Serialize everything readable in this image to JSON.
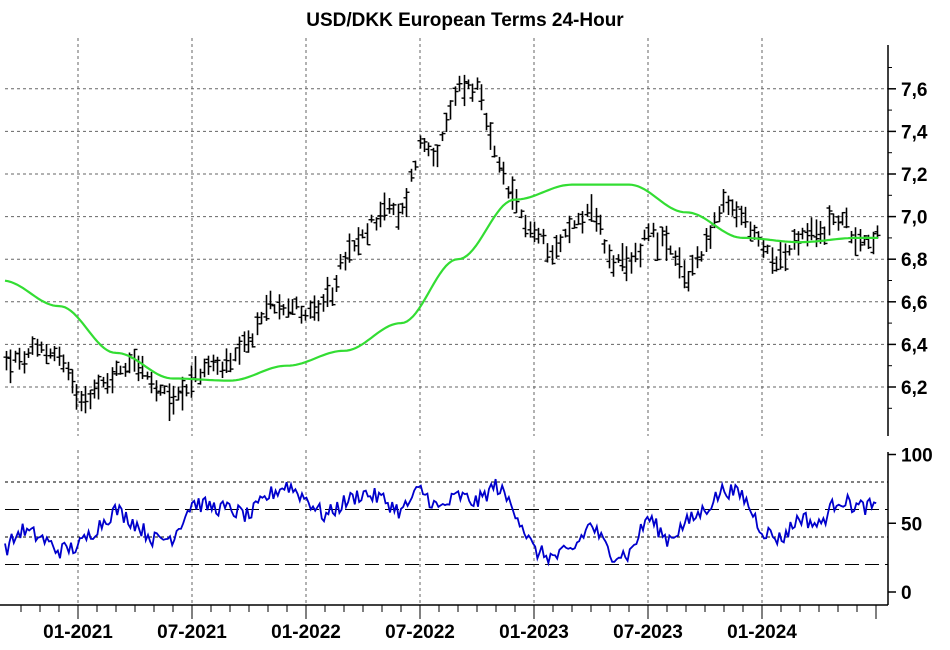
{
  "chart_data": [
    {
      "type": "bar",
      "subtype": "ohlc-bars-with-moving-average",
      "title": "USD/DKK European Terms 24-Hour",
      "ylim": [
        6.0,
        7.8
      ],
      "yticks": [
        "6,2",
        "6,4",
        "6,6",
        "6,8",
        "7,0",
        "7,2",
        "7,4",
        "7,6"
      ],
      "xticks": [
        "01-2021",
        "07-2021",
        "01-2022",
        "07-2022",
        "01-2023",
        "07-2023",
        "01-2024"
      ],
      "grid": true,
      "colors": {
        "price": "#000000",
        "moving_average": "#33dd33"
      },
      "series": [
        {
          "x": [
            "2020-10",
            "2020-11",
            "2020-12",
            "2021-01",
            "2021-02",
            "2021-03",
            "2021-04",
            "2021-05",
            "2021-06",
            "2021-07",
            "2021-08",
            "2021-09",
            "2021-10",
            "2021-11",
            "2021-12",
            "2022-01",
            "2022-02",
            "2022-03",
            "2022-04",
            "2022-05",
            "2022-06",
            "2022-07",
            "2022-08",
            "2022-09",
            "2022-10",
            "2022-11",
            "2022-12",
            "2023-01",
            "2023-02",
            "2023-03",
            "2023-04",
            "2023-05",
            "2023-06",
            "2023-07",
            "2023-08",
            "2023-09",
            "2023-10",
            "2023-11",
            "2023-12",
            "2024-01",
            "2024-02",
            "2024-03",
            "2024-04",
            "2024-05",
            "2024-06"
          ],
          "values": [
            6.32,
            6.38,
            6.35,
            6.16,
            6.18,
            6.27,
            6.34,
            6.18,
            6.14,
            6.24,
            6.3,
            6.3,
            6.4,
            6.59,
            6.6,
            6.55,
            6.57,
            6.8,
            6.9,
            7.05,
            7.0,
            7.35,
            7.3,
            7.62,
            7.6,
            7.25,
            7.05,
            6.92,
            6.85,
            6.95,
            7.05,
            6.8,
            6.75,
            6.95,
            6.85,
            6.7,
            6.88,
            7.05,
            7.0,
            6.85,
            6.8,
            6.9,
            6.92,
            7.0,
            6.9
          ]
        },
        {
          "x": [
            "2020-09",
            "2020-12",
            "2021-03",
            "2021-06",
            "2021-09",
            "2021-12",
            "2022-03",
            "2022-06",
            "2022-09",
            "2022-12",
            "2023-03",
            "2023-06",
            "2023-09",
            "2023-12",
            "2024-03",
            "2024-06"
          ],
          "values": [
            6.7,
            6.58,
            6.36,
            6.24,
            6.23,
            6.3,
            6.37,
            6.5,
            6.8,
            7.08,
            7.15,
            7.15,
            7.02,
            6.9,
            6.88,
            6.9
          ]
        }
      ]
    },
    {
      "type": "line",
      "ylim": [
        0,
        100
      ],
      "yticks": [
        "0",
        "50",
        "100"
      ],
      "reference_lines": [
        20,
        40,
        60,
        80
      ],
      "colors": {
        "line": "#0000cc"
      },
      "series": [
        {
          "x": [
            "2020-09",
            "2020-10",
            "2020-11",
            "2020-12",
            "2021-01",
            "2021-02",
            "2021-03",
            "2021-04",
            "2021-05",
            "2021-06",
            "2021-07",
            "2021-08",
            "2021-09",
            "2021-10",
            "2021-11",
            "2021-12",
            "2022-01",
            "2022-02",
            "2022-03",
            "2022-04",
            "2022-05",
            "2022-06",
            "2022-07",
            "2022-08",
            "2022-09",
            "2022-10",
            "2022-11",
            "2022-12",
            "2023-01",
            "2023-02",
            "2023-03",
            "2023-04",
            "2023-05",
            "2023-06",
            "2023-07",
            "2023-08",
            "2023-09",
            "2023-10",
            "2023-11",
            "2023-12",
            "2024-01",
            "2024-02",
            "2024-03",
            "2024-04",
            "2024-05",
            "2024-06"
          ],
          "values": [
            28,
            45,
            40,
            30,
            33,
            47,
            60,
            50,
            38,
            40,
            65,
            62,
            60,
            55,
            70,
            78,
            68,
            55,
            65,
            72,
            68,
            58,
            75,
            60,
            70,
            65,
            78,
            60,
            30,
            25,
            30,
            50,
            28,
            27,
            55,
            38,
            50,
            60,
            75,
            70,
            45,
            38,
            55,
            48,
            68,
            62
          ]
        }
      ]
    }
  ]
}
